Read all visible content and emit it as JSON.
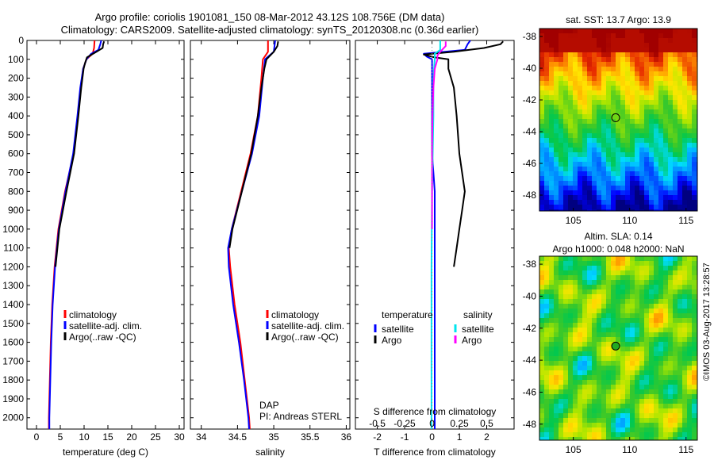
{
  "header": {
    "line1": "Argo profile: coriolis 1901081_150 08-Mar-2012 43.12S 108.756E (DM data)",
    "line2": "Climatology: CARS2009. Satellite-adjusted climatology: synTS_20120308.nc (0.36d earlier)"
  },
  "credit": "©IMOS 03-Aug-2017 13:28:57",
  "colors": {
    "climatology": "#ff0000",
    "satellite": "#0000ff",
    "argo": "#000000",
    "sat_salinity": "#00e5ee",
    "argo_salinity": "#ff00ff"
  },
  "chart_data": [
    {
      "type": "line",
      "panel": "temperature",
      "xlabel": "temperature (deg C)",
      "xticks": [
        0,
        5,
        10,
        15,
        20,
        25,
        30
      ],
      "xlim": [
        -2,
        31
      ],
      "yticks": [
        0,
        100,
        200,
        300,
        400,
        500,
        600,
        700,
        800,
        900,
        1000,
        1100,
        1200,
        1300,
        1400,
        1500,
        1600,
        1700,
        1800,
        1900,
        2000
      ],
      "ylim": [
        2060,
        0
      ],
      "legend": [
        "climatology",
        "satellite-adj. clim.",
        "Argo(..raw -QC)"
      ],
      "series": [
        {
          "name": "climatology",
          "depth": [
            0,
            40,
            70,
            100,
            150,
            250,
            400,
            600,
            800,
            1000,
            1200,
            1400,
            1600,
            1800,
            2000,
            2060
          ],
          "values": [
            12.2,
            12.1,
            11.8,
            10.5,
            9.8,
            9.3,
            8.7,
            7.8,
            6.0,
            4.6,
            3.8,
            3.3,
            3.0,
            2.8,
            2.6,
            2.6
          ]
        },
        {
          "name": "satellite-adj. clim.",
          "depth": [
            0,
            20,
            50,
            70,
            100,
            150,
            250,
            400,
            600,
            800,
            1000,
            1200,
            1400,
            1600,
            1800,
            2000,
            2060
          ],
          "values": [
            13.6,
            13.4,
            13.0,
            11.5,
            10.5,
            9.8,
            9.2,
            8.6,
            7.7,
            6.1,
            4.7,
            3.9,
            3.4,
            3.1,
            2.9,
            2.7,
            2.7
          ]
        },
        {
          "name": "Argo(..raw -QC)",
          "depth": [
            5,
            20,
            40,
            60,
            75,
            90,
            120,
            150,
            250,
            400,
            600,
            800,
            1000,
            1200
          ],
          "values": [
            14.2,
            14.0,
            13.9,
            12.6,
            11.6,
            10.6,
            10.2,
            9.9,
            9.4,
            8.8,
            7.9,
            6.3,
            4.8,
            4.0
          ]
        }
      ]
    },
    {
      "type": "line",
      "panel": "salinity",
      "xlabel": "salinity",
      "xticks": [
        34,
        34.5,
        35,
        35.5,
        36
      ],
      "xlim": [
        33.85,
        36.05
      ],
      "ylim": [
        2060,
        0
      ],
      "legend": [
        "climatology",
        "satellite-adj. clim.",
        "Argo(..raw -QC)"
      ],
      "annotation": [
        "DAP",
        "PI: Andreas STERL"
      ],
      "series": [
        {
          "name": "climatology",
          "depth": [
            0,
            60,
            100,
            200,
            400,
            600,
            800,
            1000,
            1100,
            1200,
            1400,
            1600,
            1800,
            2000,
            2060
          ],
          "values": [
            34.92,
            34.92,
            34.85,
            34.83,
            34.78,
            34.68,
            34.55,
            34.42,
            34.38,
            34.4,
            34.46,
            34.54,
            34.6,
            34.66,
            34.67
          ]
        },
        {
          "name": "satellite-adj. clim.",
          "depth": [
            0,
            60,
            100,
            200,
            400,
            600,
            800,
            1000,
            1100,
            1200,
            1400,
            1600,
            1800,
            2000,
            2060
          ],
          "values": [
            35.02,
            35.0,
            34.88,
            34.85,
            34.8,
            34.7,
            34.56,
            34.42,
            34.37,
            34.38,
            34.44,
            34.52,
            34.59,
            34.65,
            34.66
          ]
        },
        {
          "name": "Argo(..raw -QC)",
          "depth": [
            5,
            30,
            60,
            80,
            100,
            150,
            250,
            400,
            600,
            800,
            1000,
            1100
          ],
          "values": [
            35.06,
            35.05,
            35.0,
            34.95,
            34.9,
            34.87,
            34.83,
            34.78,
            34.69,
            34.56,
            34.43,
            34.39
          ]
        }
      ]
    },
    {
      "type": "line",
      "panel": "differences",
      "xlabel": "T difference from climatology",
      "xlabel2": "S difference from climatology",
      "xticks": [
        -2,
        -1,
        0,
        1,
        2
      ],
      "xticks2": [
        "-0.5",
        "-0.25",
        "0",
        "0.25",
        "0.5"
      ],
      "xlim": [
        -2.8,
        3.0
      ],
      "ylim": [
        2060,
        0
      ],
      "legend_headers": [
        "temperature",
        "salinity"
      ],
      "legend": [
        "satellite",
        "Argo",
        "satellite",
        "Argo"
      ],
      "series": [
        {
          "name": "satellite",
          "depth": [
            0,
            20,
            50,
            70,
            85,
            100,
            150,
            300,
            600,
            800,
            900,
            1000,
            1200,
            1400,
            1600,
            1800,
            2000,
            2060
          ],
          "values": [
            1.4,
            1.3,
            1.2,
            -0.3,
            -0.2,
            0.0,
            0.0,
            0.0,
            0.0,
            0.1,
            0.1,
            0.1,
            0.1,
            0.1,
            0.1,
            0.1,
            0.1,
            0.1
          ]
        },
        {
          "name": "Argo",
          "depth": [
            5,
            20,
            40,
            60,
            75,
            90,
            100,
            150,
            250,
            400,
            600,
            800,
            900,
            1000,
            1100,
            1200
          ],
          "values": [
            2.6,
            2.5,
            1.9,
            0.8,
            -0.3,
            0.1,
            0.6,
            0.6,
            0.8,
            0.9,
            1.0,
            1.2,
            1.1,
            1.0,
            0.9,
            0.8
          ]
        },
        {
          "name": "satellite",
          "depth": [
            0,
            20,
            50,
            70,
            100,
            200,
            400,
            800,
            1200,
            1600,
            2000,
            2060
          ],
          "values": [
            0.3,
            0.3,
            0.3,
            0.1,
            0.1,
            0.05,
            0.05,
            0.0,
            -0.02,
            -0.02,
            -0.02,
            -0.02
          ]
        },
        {
          "name": "Argo",
          "depth": [
            5,
            30,
            60,
            80,
            100,
            150,
            250,
            400,
            600,
            800,
            1000
          ],
          "values": [
            0.5,
            0.5,
            0.3,
            0.2,
            0.2,
            0.1,
            0.05,
            0.02,
            0.0,
            0.0,
            0.0
          ]
        }
      ]
    },
    {
      "type": "heatmap",
      "panel": "sst-map",
      "title": "sat. SST: 13.7 Argo: 13.9",
      "xticks": [
        105,
        110,
        115
      ],
      "yticks": [
        -38,
        -40,
        -42,
        -44,
        -46,
        -48
      ],
      "xlim": [
        102,
        116
      ],
      "ylim": [
        -49,
        -37.5
      ],
      "marker": {
        "lon": 108.756,
        "lat": -43.12
      }
    },
    {
      "type": "heatmap",
      "panel": "sla-map",
      "title": "Altim. SLA: 0.14",
      "title2": "Argo h1000: 0.048 h2000: NaN",
      "xticks": [
        105,
        110,
        115
      ],
      "yticks": [
        -38,
        -40,
        -42,
        -44,
        -46,
        -48
      ],
      "xlim": [
        102,
        116
      ],
      "ylim": [
        -49,
        -37.5
      ],
      "marker": {
        "lon": 108.756,
        "lat": -43.12
      }
    }
  ]
}
